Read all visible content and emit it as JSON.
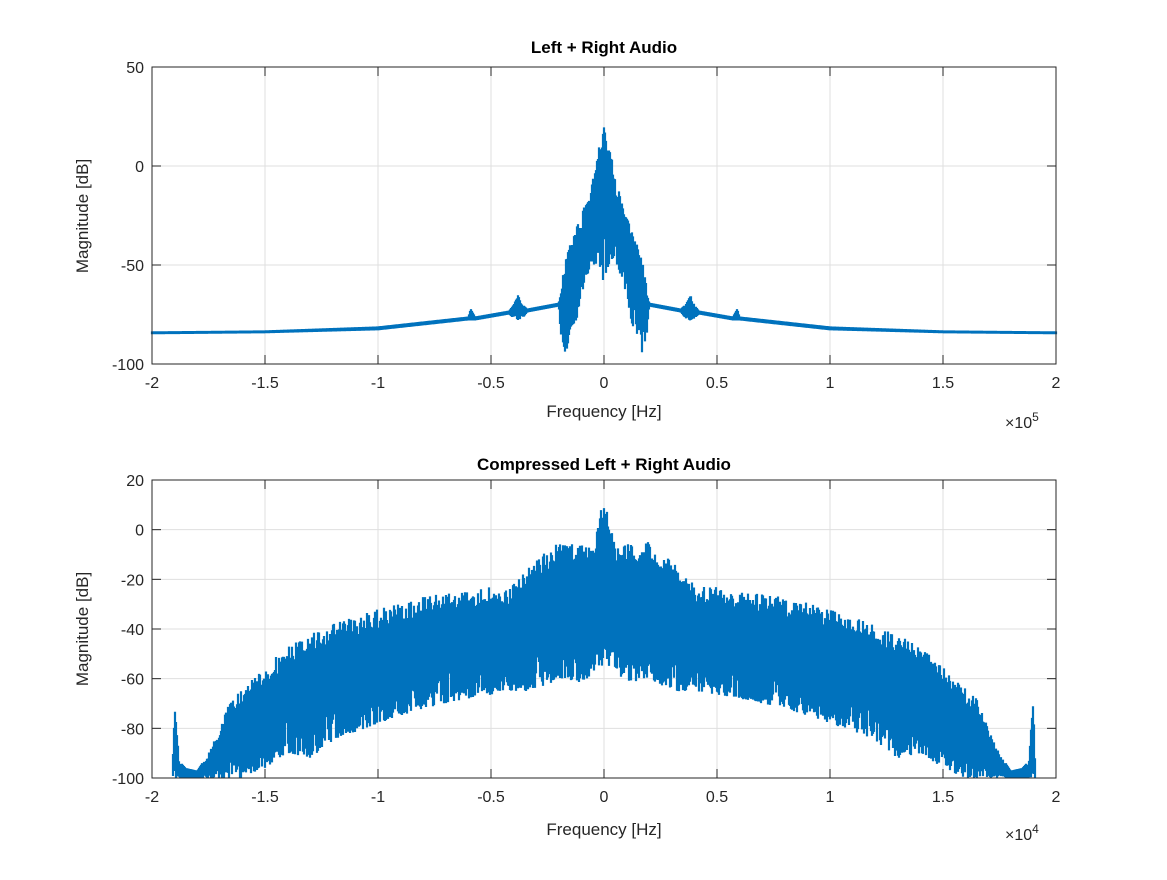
{
  "chart_data": [
    {
      "type": "line",
      "title": "Left + Right Audio",
      "xlabel": "Frequency [Hz]",
      "ylabel": "Magnitude [dB]",
      "x_multiplier": "10",
      "x_exponent": "5",
      "xlim": [
        -2,
        2
      ],
      "ylim": [
        -100,
        50
      ],
      "xticks": [
        "-2",
        "-1.5",
        "-1",
        "-0.5",
        "0",
        "0.5",
        "1",
        "1.5",
        "2"
      ],
      "yticks": [
        "50",
        "0",
        "-50",
        "-100"
      ],
      "grid": true,
      "color": "#0072BD",
      "symmetric": true,
      "envelope_note": "x, upper dB, lower dB (x in units of 1e5 Hz), positive half, mirrored",
      "envelope": [
        [
          0,
          22,
          -60
        ],
        [
          0.005,
          22,
          -60
        ],
        [
          0.01,
          12,
          -55
        ],
        [
          0.03,
          11,
          -50
        ],
        [
          0.04,
          -3,
          -50
        ],
        [
          0.06,
          -10,
          -50
        ],
        [
          0.08,
          -18,
          -58
        ],
        [
          0.1,
          -25,
          -65
        ],
        [
          0.12,
          -30,
          -78
        ],
        [
          0.15,
          -38,
          -90
        ],
        [
          0.17,
          -45,
          -95
        ],
        [
          0.19,
          -62,
          -88
        ],
        [
          0.2,
          -69,
          -71
        ],
        [
          0.34,
          -72,
          -74
        ],
        [
          0.36,
          -70,
          -77
        ],
        [
          0.38,
          -63,
          -78
        ],
        [
          0.4,
          -70,
          -77
        ],
        [
          0.42,
          -73,
          -75
        ],
        [
          0.57,
          -76,
          -78
        ],
        [
          0.59,
          -72,
          -78
        ],
        [
          0.6,
          -76,
          -78
        ],
        [
          1.0,
          -81,
          -83
        ],
        [
          1.5,
          -83,
          -84.5
        ],
        [
          2.0,
          -83.5,
          -85
        ]
      ]
    },
    {
      "type": "line",
      "title": "Compressed Left + Right Audio",
      "xlabel": "Frequency [Hz]",
      "ylabel": "Magnitude [dB]",
      "x_multiplier": "10",
      "x_exponent": "4",
      "xlim": [
        -2,
        2
      ],
      "ylim": [
        -100,
        20
      ],
      "xticks": [
        "-2",
        "-1.5",
        "-1",
        "-0.5",
        "0",
        "0.5",
        "1",
        "1.5",
        "2"
      ],
      "yticks": [
        "20",
        "0",
        "-20",
        "-40",
        "-60",
        "-80",
        "-100"
      ],
      "grid": true,
      "color": "#0072BD",
      "symmetric": true,
      "envelope_note": "x, upper dB, lower dB (x in units of 1e4 Hz), positive half, mirrored",
      "envelope": [
        [
          0,
          9,
          -55
        ],
        [
          0.01,
          9,
          -55
        ],
        [
          0.05,
          -5,
          -58
        ],
        [
          0.1,
          -5,
          -62
        ],
        [
          0.2,
          -5,
          -60
        ],
        [
          0.3,
          -12,
          -65
        ],
        [
          0.4,
          -22,
          -65
        ],
        [
          0.6,
          -24,
          -68
        ],
        [
          0.8,
          -27,
          -72
        ],
        [
          1.0,
          -32,
          -78
        ],
        [
          1.2,
          -38,
          -85
        ],
        [
          1.3,
          -42,
          -92
        ],
        [
          1.4,
          -47,
          -90
        ],
        [
          1.5,
          -55,
          -96
        ],
        [
          1.6,
          -63,
          -100
        ],
        [
          1.65,
          -68,
          -100
        ],
        [
          1.7,
          -80,
          -100
        ],
        [
          1.75,
          -90,
          -100
        ],
        [
          1.8,
          -97,
          -100
        ],
        [
          1.85,
          -96,
          -100
        ],
        [
          1.88,
          -93,
          -100
        ],
        [
          1.9,
          -66,
          -100
        ],
        [
          1.91,
          -100,
          -100
        ]
      ]
    }
  ]
}
